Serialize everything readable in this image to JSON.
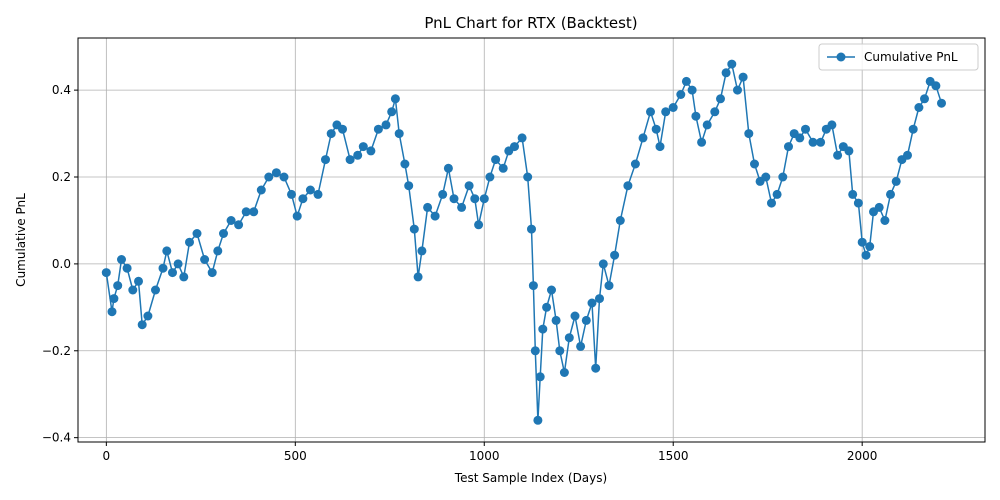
{
  "chart_data": {
    "type": "line",
    "title": "PnL Chart for RTX (Backtest)",
    "xlabel": "Test Sample Index (Days)",
    "ylabel": "Cumulative PnL",
    "xlim": [
      -75,
      2325
    ],
    "ylim": [
      -0.41,
      0.52
    ],
    "xticks": [
      0,
      500,
      1000,
      1500,
      2000
    ],
    "xtick_labels": [
      "0",
      "500",
      "1000",
      "1500",
      "2000"
    ],
    "yticks": [
      -0.4,
      -0.2,
      0.0,
      0.2,
      0.4
    ],
    "ytick_labels": [
      "−0.4",
      "−0.2",
      "0.0",
      "0.2",
      "0.4"
    ],
    "grid": true,
    "legend": {
      "placement": "upper-right"
    },
    "series": [
      {
        "name": "Cumulative PnL",
        "color": "#1f77b4",
        "marker": "circle",
        "x": [
          0,
          15,
          20,
          30,
          40,
          55,
          70,
          85,
          95,
          110,
          130,
          150,
          160,
          175,
          190,
          205,
          220,
          240,
          260,
          280,
          295,
          310,
          330,
          350,
          370,
          390,
          410,
          430,
          450,
          470,
          490,
          505,
          520,
          540,
          560,
          580,
          595,
          610,
          625,
          645,
          665,
          680,
          700,
          720,
          740,
          755,
          765,
          775,
          790,
          800,
          815,
          825,
          835,
          850,
          870,
          890,
          905,
          920,
          940,
          960,
          975,
          985,
          1000,
          1015,
          1030,
          1050,
          1065,
          1080,
          1100,
          1115,
          1125,
          1130,
          1135,
          1142,
          1148,
          1155,
          1165,
          1178,
          1190,
          1200,
          1212,
          1225,
          1240,
          1255,
          1270,
          1285,
          1295,
          1305,
          1315,
          1330,
          1345,
          1360,
          1380,
          1400,
          1420,
          1440,
          1455,
          1465,
          1480,
          1500,
          1520,
          1535,
          1550,
          1560,
          1575,
          1590,
          1610,
          1625,
          1640,
          1655,
          1670,
          1685,
          1700,
          1715,
          1730,
          1745,
          1760,
          1775,
          1790,
          1805,
          1820,
          1835,
          1850,
          1870,
          1890,
          1905,
          1920,
          1935,
          1950,
          1965,
          1975,
          1990,
          2000,
          2010,
          2020,
          2030,
          2045,
          2060,
          2075,
          2090,
          2105,
          2120,
          2135,
          2150,
          2165,
          2180,
          2195,
          2210
        ],
        "values": [
          -0.02,
          -0.11,
          -0.08,
          -0.05,
          0.01,
          -0.01,
          -0.06,
          -0.04,
          -0.14,
          -0.12,
          -0.06,
          -0.01,
          0.03,
          -0.02,
          0.0,
          -0.03,
          0.05,
          0.07,
          0.01,
          -0.02,
          0.03,
          0.07,
          0.1,
          0.09,
          0.12,
          0.12,
          0.17,
          0.2,
          0.21,
          0.2,
          0.16,
          0.11,
          0.15,
          0.17,
          0.16,
          0.24,
          0.3,
          0.32,
          0.31,
          0.24,
          0.25,
          0.27,
          0.26,
          0.31,
          0.32,
          0.35,
          0.38,
          0.3,
          0.23,
          0.18,
          0.08,
          -0.03,
          0.03,
          0.13,
          0.11,
          0.16,
          0.22,
          0.15,
          0.13,
          0.18,
          0.15,
          0.09,
          0.15,
          0.2,
          0.24,
          0.22,
          0.26,
          0.27,
          0.29,
          0.2,
          0.08,
          -0.05,
          -0.2,
          -0.36,
          -0.26,
          -0.15,
          -0.1,
          -0.06,
          -0.13,
          -0.2,
          -0.25,
          -0.17,
          -0.12,
          -0.19,
          -0.13,
          -0.09,
          -0.24,
          -0.08,
          0.0,
          -0.05,
          0.02,
          0.1,
          0.18,
          0.23,
          0.29,
          0.35,
          0.31,
          0.27,
          0.35,
          0.36,
          0.39,
          0.42,
          0.4,
          0.34,
          0.28,
          0.32,
          0.35,
          0.38,
          0.44,
          0.46,
          0.4,
          0.43,
          0.3,
          0.23,
          0.19,
          0.2,
          0.14,
          0.16,
          0.2,
          0.27,
          0.3,
          0.29,
          0.31,
          0.28,
          0.28,
          0.31,
          0.32,
          0.25,
          0.27,
          0.26,
          0.16,
          0.14,
          0.05,
          0.02,
          0.04,
          0.12,
          0.13,
          0.1,
          0.16,
          0.19,
          0.24,
          0.25,
          0.31,
          0.36,
          0.38,
          0.42,
          0.41,
          0.37
        ]
      }
    ]
  }
}
